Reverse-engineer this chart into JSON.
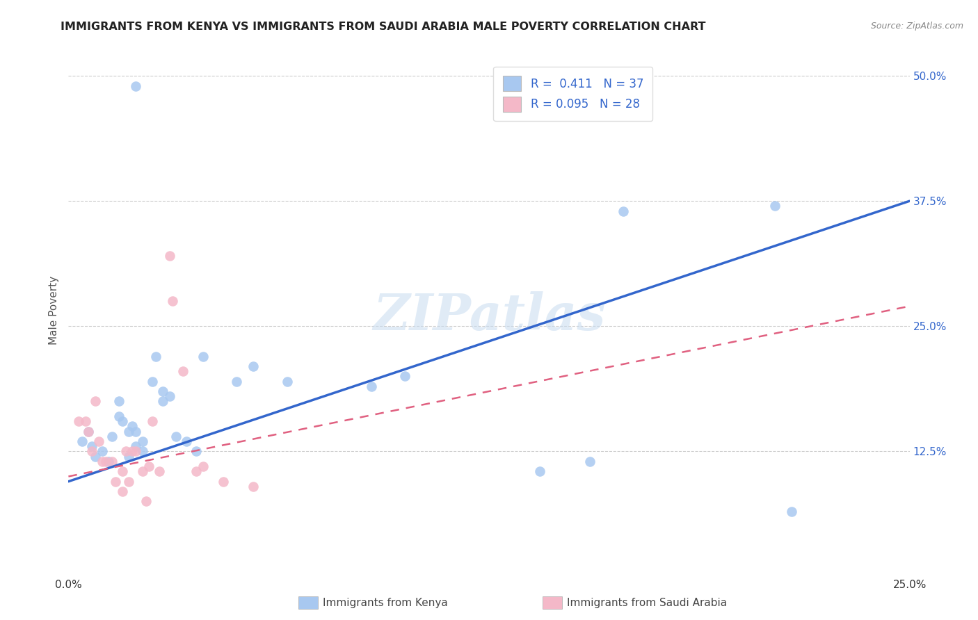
{
  "title": "IMMIGRANTS FROM KENYA VS IMMIGRANTS FROM SAUDI ARABIA MALE POVERTY CORRELATION CHART",
  "source": "Source: ZipAtlas.com",
  "ylabel": "Male Poverty",
  "xlim": [
    0.0,
    0.25
  ],
  "ylim": [
    0.0,
    0.52
  ],
  "xtick_positions": [
    0.0,
    0.05,
    0.1,
    0.15,
    0.2,
    0.25
  ],
  "xtick_labels": [
    "0.0%",
    "",
    "",
    "",
    "",
    "25.0%"
  ],
  "ytick_positions": [
    0.125,
    0.25,
    0.375,
    0.5
  ],
  "ytick_labels": [
    "12.5%",
    "25.0%",
    "37.5%",
    "50.0%"
  ],
  "grid_color": "#cccccc",
  "background_color": "#ffffff",
  "kenya_color": "#a8c8f0",
  "kenya_line_color": "#3366cc",
  "saudi_color": "#f4b8c8",
  "saudi_line_color": "#e06080",
  "kenya_R": "0.411",
  "kenya_N": "37",
  "saudi_R": "0.095",
  "saudi_N": "28",
  "kenya_label": "Immigrants from Kenya",
  "saudi_label": "Immigrants from Saudi Arabia",
  "watermark": "ZIPatlas",
  "kenya_scatter_x": [
    0.02,
    0.004,
    0.006,
    0.007,
    0.008,
    0.01,
    0.012,
    0.013,
    0.015,
    0.015,
    0.016,
    0.018,
    0.018,
    0.019,
    0.02,
    0.02,
    0.022,
    0.022,
    0.025,
    0.026,
    0.028,
    0.028,
    0.03,
    0.032,
    0.035,
    0.038,
    0.04,
    0.05,
    0.055,
    0.065,
    0.09,
    0.1,
    0.14,
    0.155,
    0.165,
    0.215,
    0.21
  ],
  "kenya_scatter_y": [
    0.49,
    0.135,
    0.145,
    0.13,
    0.12,
    0.125,
    0.115,
    0.14,
    0.16,
    0.175,
    0.155,
    0.12,
    0.145,
    0.15,
    0.13,
    0.145,
    0.125,
    0.135,
    0.195,
    0.22,
    0.175,
    0.185,
    0.18,
    0.14,
    0.135,
    0.125,
    0.22,
    0.195,
    0.21,
    0.195,
    0.19,
    0.2,
    0.105,
    0.115,
    0.365,
    0.065,
    0.37
  ],
  "saudi_scatter_x": [
    0.003,
    0.005,
    0.006,
    0.007,
    0.008,
    0.009,
    0.01,
    0.011,
    0.013,
    0.014,
    0.016,
    0.016,
    0.017,
    0.018,
    0.019,
    0.02,
    0.022,
    0.023,
    0.024,
    0.025,
    0.027,
    0.03,
    0.031,
    0.034,
    0.038,
    0.04,
    0.046,
    0.055
  ],
  "saudi_scatter_y": [
    0.155,
    0.155,
    0.145,
    0.125,
    0.175,
    0.135,
    0.115,
    0.115,
    0.115,
    0.095,
    0.105,
    0.085,
    0.125,
    0.095,
    0.125,
    0.125,
    0.105,
    0.075,
    0.11,
    0.155,
    0.105,
    0.32,
    0.275,
    0.205,
    0.105,
    0.11,
    0.095,
    0.09
  ],
  "kenya_line_x": [
    0.0,
    0.25
  ],
  "kenya_line_y": [
    0.095,
    0.375
  ],
  "saudi_line_x": [
    0.0,
    0.25
  ],
  "saudi_line_y": [
    0.1,
    0.27
  ]
}
